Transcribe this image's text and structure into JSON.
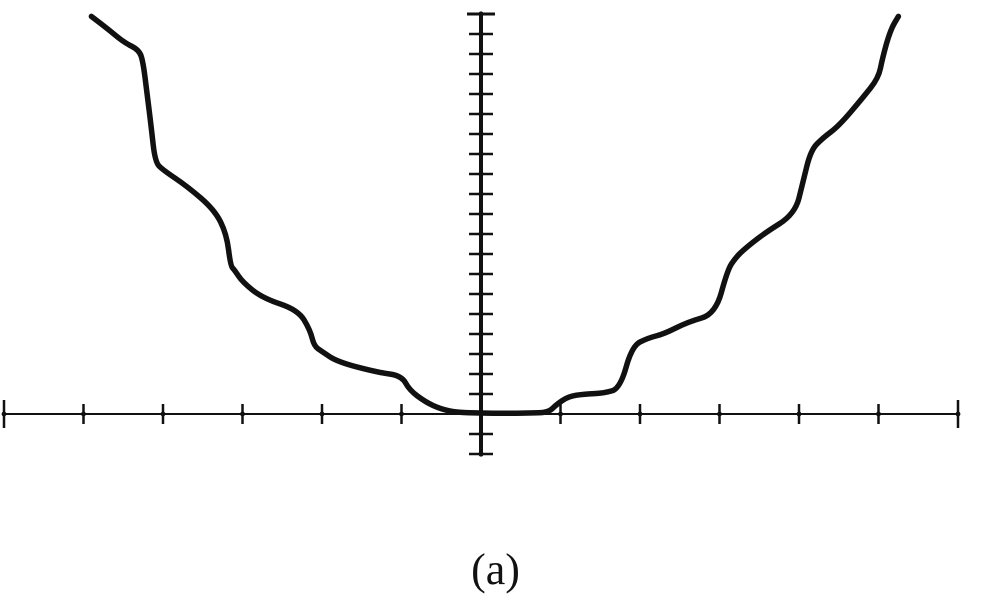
{
  "chart_data": {
    "type": "line",
    "caption": "(a)",
    "title": "",
    "xlabel": "",
    "ylabel": "",
    "xlim": [
      -6,
      6
    ],
    "ylim": [
      -0.5,
      5
    ],
    "x_ticks": [
      -6,
      -5,
      -4,
      -3,
      -2,
      -1,
      1,
      2,
      3,
      4,
      5,
      6
    ],
    "y_ticks": [
      -0.5,
      -0.25,
      0.25,
      0.5,
      0.75,
      1,
      1.25,
      1.5,
      1.75,
      2,
      2.25,
      2.5,
      2.75,
      3,
      3.25,
      3.5,
      3.75,
      4,
      4.25,
      4.5,
      4.75,
      5
    ],
    "tick_labels_shown": false,
    "grid": false,
    "line_color": "#111111",
    "series": [
      {
        "x": [
          -4.9,
          -4.7,
          -4.5,
          -4.3,
          -4.25,
          -4.2,
          -4.15,
          -4.1,
          -4.0,
          -3.7,
          -3.35,
          -3.2,
          -3.15,
          -3.1,
          -3.0,
          -2.75,
          -2.3,
          -2.15,
          -2.1,
          -2.0,
          -1.8,
          -1.3,
          -1.0,
          -0.9,
          -0.7,
          -0.5,
          -0.3,
          0.0,
          0.3,
          0.6,
          0.85,
          0.95,
          1.1,
          1.3,
          1.55,
          1.75,
          1.9,
          2.1,
          2.3,
          2.6,
          2.95,
          3.1,
          3.2,
          3.3,
          3.55,
          3.95,
          4.05,
          4.15,
          4.3,
          4.5,
          4.8,
          5.0,
          5.05,
          5.15,
          5.25
        ],
        "y": [
          4.97,
          4.82,
          4.65,
          4.55,
          4.4,
          4.0,
          3.6,
          3.15,
          3.05,
          2.85,
          2.55,
          2.25,
          1.85,
          1.8,
          1.65,
          1.45,
          1.3,
          1.05,
          0.85,
          0.78,
          0.65,
          0.52,
          0.48,
          0.3,
          0.15,
          0.06,
          0.02,
          0.01,
          0.01,
          0.01,
          0.02,
          0.12,
          0.22,
          0.25,
          0.26,
          0.32,
          0.85,
          0.95,
          1.0,
          1.15,
          1.25,
          1.8,
          1.95,
          2.05,
          2.25,
          2.5,
          2.9,
          3.3,
          3.45,
          3.6,
          3.95,
          4.2,
          4.45,
          4.8,
          4.97
        ]
      }
    ]
  }
}
